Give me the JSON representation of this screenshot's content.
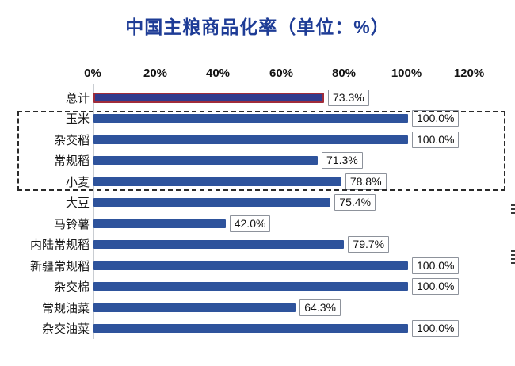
{
  "title": {
    "text": "中国主粮商品化率（单位：%）",
    "color": "#1e3c96"
  },
  "axis": {
    "ticks": [
      "0%",
      "20%",
      "40%",
      "60%",
      "80%",
      "100%",
      "120%"
    ]
  },
  "chart_data": {
    "type": "bar",
    "orientation": "horizontal",
    "title": "中国主粮商品化率（单位：%）",
    "xlabel": "",
    "ylabel": "",
    "xlim": [
      0,
      120
    ],
    "x_ticks_percent": [
      0,
      20,
      40,
      60,
      80,
      100,
      120
    ],
    "grid": false,
    "categories": [
      "总计",
      "玉米",
      "杂交稻",
      "常规稻",
      "小麦",
      "大豆",
      "马铃薯",
      "内陆常规稻",
      "新疆常规稻",
      "杂交棉",
      "常规油菜",
      "杂交油菜"
    ],
    "values": [
      73.3,
      100.0,
      100.0,
      71.3,
      78.8,
      75.4,
      42.0,
      79.7,
      100.0,
      100.0,
      64.3,
      100.0
    ],
    "value_labels": [
      "73.3%",
      "100.0%",
      "100.0%",
      "71.3%",
      "78.8%",
      "75.4%",
      "42.0%",
      "79.7%",
      "100.0%",
      "100.0%",
      "64.3%",
      "100.0%"
    ],
    "highlight": {
      "category": "总计",
      "border_color": "#a02c3a",
      "fill_color": "#313b8e"
    },
    "group_box": {
      "categories": [
        "玉米",
        "杂交稻",
        "常规稻",
        "小麦"
      ],
      "style": "dashed"
    },
    "bar_color": "#2e539c"
  },
  "colors": {
    "title": "#1e3c96",
    "bar": "#2e539c",
    "total_bar_fill": "#313b8e",
    "total_bar_border": "#a02c3a",
    "value_box_border": "#8d929b",
    "dashed_box": "#2b2b2b",
    "axis_line": "#c9cdd2"
  }
}
